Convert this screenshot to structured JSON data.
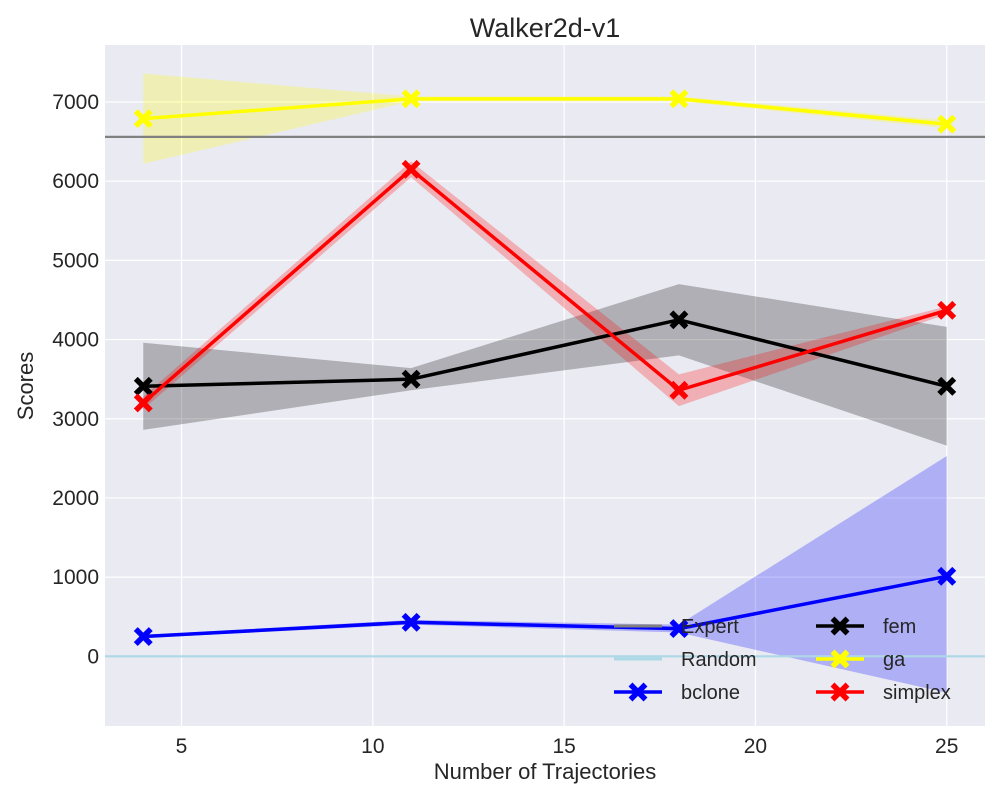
{
  "chart_data": {
    "type": "line",
    "title": "Walker2d-v1",
    "xlabel": "Number of Trajectories",
    "ylabel": "Scores",
    "xlim": [
      3,
      26
    ],
    "ylim": [
      -880,
      7720
    ],
    "xticks": [
      5,
      10,
      15,
      20,
      25
    ],
    "yticks": [
      0,
      1000,
      2000,
      3000,
      4000,
      5000,
      6000,
      7000
    ],
    "grid": true,
    "legend_position": "lower-right",
    "legend_columns": 2,
    "reference_lines": [
      {
        "name": "Expert",
        "y": 6560,
        "color": "#808080"
      },
      {
        "name": "Random",
        "y": 0,
        "color": "#add8e6"
      }
    ],
    "x": [
      4,
      11,
      18,
      25
    ],
    "series": [
      {
        "name": "bclone",
        "color": "#0000ff",
        "values": [
          250,
          430,
          350,
          1010
        ],
        "band_lower": [
          230,
          400,
          300,
          -460
        ],
        "band_upper": [
          270,
          460,
          400,
          2530
        ]
      },
      {
        "name": "fem",
        "color": "#000000",
        "values": [
          3410,
          3500,
          4250,
          3410
        ],
        "band_lower": [
          2860,
          3360,
          3800,
          2660
        ],
        "band_upper": [
          3960,
          3640,
          4700,
          4160
        ]
      },
      {
        "name": "ga",
        "color": "#ffff00",
        "values": [
          6790,
          7040,
          7040,
          6720
        ],
        "band_lower": [
          6220,
          7010,
          7010,
          6670
        ],
        "band_upper": [
          7360,
          7070,
          7070,
          6770
        ]
      },
      {
        "name": "simplex",
        "color": "#ff0000",
        "values": [
          3200,
          6150,
          3360,
          4370
        ],
        "band_lower": [
          3120,
          6050,
          3160,
          4320
        ],
        "band_upper": [
          3280,
          6250,
          3560,
          4420
        ]
      }
    ]
  }
}
